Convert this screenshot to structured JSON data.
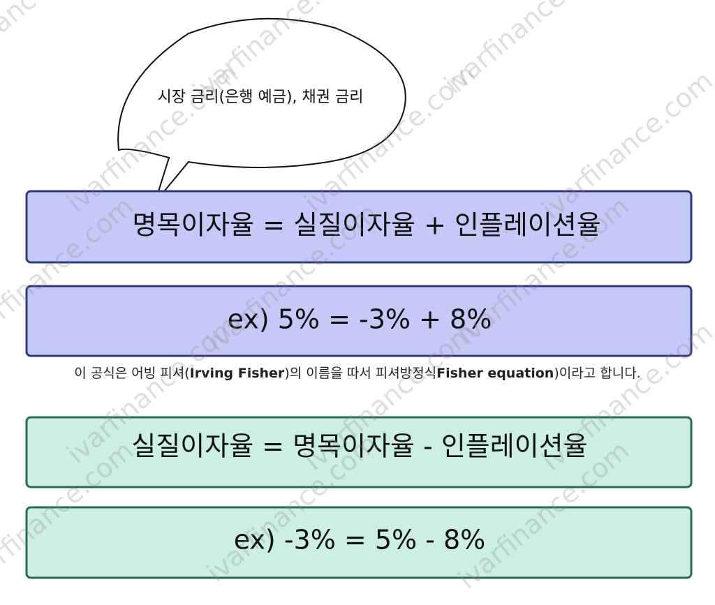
{
  "bubble": {
    "text": "시장 금리(은행 예금), 채권 금리"
  },
  "boxes": [
    {
      "text": "명목이자율 = 실질이자율 + 인플레이션율"
    },
    {
      "text": "ex) 5% = -3% + 8%"
    },
    {
      "text": "실질이자율 = 명목이자율 - 인플레이션율"
    },
    {
      "text": "ex) -3% = 5% - 8%"
    }
  ],
  "caption": {
    "parts": [
      "이 공식은 어빙 피셔(",
      "Irving Fisher",
      ")의 이름을 따서 피셔방정식",
      "Fisher equation",
      ")이라고 합니다."
    ]
  },
  "watermark": "ivarfinance.com"
}
